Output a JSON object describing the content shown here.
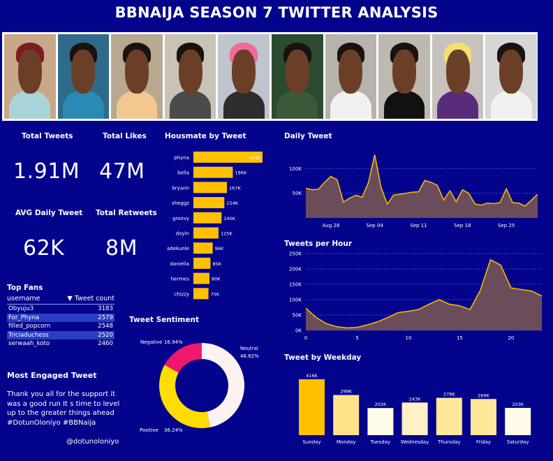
{
  "title": "BBNAIJA SEASON 7 TWITTER ANALYSIS",
  "kpis": {
    "total_tweets_label": "Total Tweets",
    "total_tweets_value": "1.91M",
    "total_likes_label": "Total Likes",
    "total_likes_value": "47M",
    "avg_daily_label": "AVG Daily Tweet",
    "avg_daily_value": "62K",
    "total_retweets_label": "Total Retweets",
    "total_retweets_value": "8M"
  },
  "top_fans": {
    "title": "Top Fans",
    "col_user": "username",
    "col_count": "Tweet count",
    "rows": [
      {
        "user": "Obyuju3",
        "count": "3183"
      },
      {
        "user": "For_Phyna",
        "count": "2579"
      },
      {
        "user": "filled_popcorn",
        "count": "2548"
      },
      {
        "user": "Triciaduchess",
        "count": "2520"
      },
      {
        "user": "serwaah_koto",
        "count": "2460"
      }
    ]
  },
  "engaged": {
    "title": "Most Engaged Tweet",
    "text": "Thank you all for the support it was a good run It s time to level up to the greater things ahead #DotunOloniyo #BBNaija",
    "handle": "@dotunoloniyo"
  },
  "colors": {
    "background": "#03038c",
    "bar": "#ffc000",
    "area_fill": "#6b4c5a",
    "line": "#f5b800",
    "negative": "#f0176e",
    "neutral": "#fdf1f2",
    "positive": "#ffdd00"
  },
  "chart_data": [
    {
      "id": "housemate",
      "type": "bar",
      "orientation": "horizontal",
      "title": "Housmate by Tweet",
      "categories": [
        "phyna",
        "bella",
        "bryann",
        "sheggz",
        "groovy",
        "doyin",
        "adekunle",
        "daniella",
        "hermes",
        "chizzy"
      ],
      "values": [
        344,
        196,
        167,
        154,
        140,
        125,
        96,
        85,
        80,
        75
      ],
      "labels": [
        "344K",
        "196K",
        "167K",
        "154K",
        "140K",
        "125K",
        "96K",
        "85K",
        "80K",
        "75K"
      ]
    },
    {
      "id": "daily",
      "type": "area",
      "title": "Daily Tweet",
      "x_start": "Aug 24",
      "x_ticks": [
        "Aug 28",
        "Sep 04",
        "Sep 11",
        "Sep 18",
        "Sep 25"
      ],
      "y_ticks": [
        "100K",
        "50K"
      ],
      "ylim": [
        0,
        140
      ],
      "values": [
        60,
        57,
        58,
        72,
        84,
        77,
        32,
        40,
        46,
        42,
        72,
        128,
        62,
        28,
        46,
        48,
        50,
        52,
        53,
        76,
        72,
        66,
        36,
        55,
        33,
        57,
        50,
        28,
        26,
        30,
        29,
        31,
        59,
        31,
        30,
        24,
        36,
        48
      ]
    },
    {
      "id": "hourly",
      "type": "area",
      "title": "Tweets per Hour",
      "x": [
        0,
        1,
        2,
        3,
        4,
        5,
        6,
        7,
        8,
        9,
        10,
        11,
        12,
        13,
        14,
        15,
        16,
        17,
        18,
        19,
        20,
        21,
        22,
        23
      ],
      "x_ticks": [
        "0",
        "5",
        "10",
        "15",
        "20"
      ],
      "y_ticks": [
        "250K",
        "200K",
        "150K",
        "100K",
        "50K",
        "0K"
      ],
      "ylim": [
        0,
        250
      ],
      "values": [
        72,
        42,
        22,
        12,
        8,
        10,
        18,
        28,
        42,
        58,
        62,
        68,
        85,
        100,
        85,
        80,
        68,
        130,
        230,
        212,
        138,
        133,
        128,
        112
      ]
    },
    {
      "id": "sentiment",
      "type": "pie",
      "title": "Tweet Sentiment",
      "categories": [
        "Neutral",
        "Positive",
        "Negative"
      ],
      "values": [
        46.82,
        36.24,
        16.94
      ],
      "labels": [
        "46.82%",
        "36.24%",
        "16.94%"
      ]
    },
    {
      "id": "weekday",
      "type": "bar",
      "title": "Tweet by Weekday",
      "categories": [
        "Sunday",
        "Monday",
        "Tuesday",
        "Wednesday",
        "Thursday",
        "Friday",
        "Saturday"
      ],
      "values": [
        416,
        299,
        202,
        243,
        278,
        269,
        203
      ],
      "labels": [
        "416K",
        "299K",
        "202K",
        "243K",
        "278K",
        "269K",
        "203K"
      ]
    }
  ]
}
